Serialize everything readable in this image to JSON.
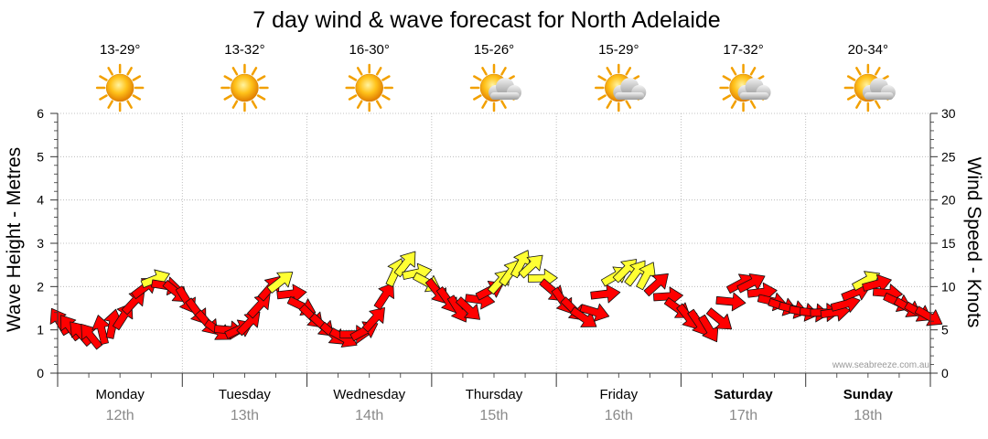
{
  "title": "7 day wind & wave forecast for North Adelaide",
  "watermark": "www.seabreeze.com.au",
  "chart_data": {
    "type": "line",
    "ylabel_left": "Wave Height - Metres",
    "ylabel_right": "Wind Speed - Knots",
    "ylim_left": [
      0,
      6
    ],
    "ylim_right": [
      0,
      30
    ],
    "left_ticks": [
      "0",
      "1",
      "2",
      "3",
      "4",
      "5",
      "6"
    ],
    "right_ticks": [
      "0",
      "5",
      "10",
      "15",
      "20",
      "25",
      "30"
    ],
    "days": [
      {
        "name": "Monday",
        "date": "12th",
        "temp": "13-29°",
        "weather": "sunny",
        "bold": false
      },
      {
        "name": "Tuesday",
        "date": "13th",
        "temp": "13-32°",
        "weather": "sunny",
        "bold": false
      },
      {
        "name": "Wednesday",
        "date": "14th",
        "temp": "16-30°",
        "weather": "sunny",
        "bold": false
      },
      {
        "name": "Thursday",
        "date": "15th",
        "temp": "15-26°",
        "weather": "partly-cloudy",
        "bold": false
      },
      {
        "name": "Friday",
        "date": "16th",
        "temp": "15-29°",
        "weather": "partly-cloudy",
        "bold": false
      },
      {
        "name": "Saturday",
        "date": "17th",
        "temp": "17-32°",
        "weather": "partly-cloudy",
        "bold": true
      },
      {
        "name": "Sunday",
        "date": "18th",
        "temp": "20-34°",
        "weather": "partly-cloudy",
        "bold": true
      }
    ],
    "series": [
      {
        "name": "Wind speed (knots)",
        "day_units_x": [
          0.0,
          0.25,
          0.5,
          0.75,
          1.0,
          1.25,
          1.5,
          1.75,
          2.0,
          2.25,
          2.5,
          2.75,
          3.0,
          3.25,
          3.5,
          3.75,
          4.0,
          4.25,
          4.5,
          4.75,
          5.0,
          5.25,
          5.5,
          5.75,
          6.0,
          6.25,
          6.5,
          6.75,
          7.0
        ],
        "values": [
          6,
          4,
          6,
          11,
          9,
          5,
          5,
          11,
          7,
          4,
          5,
          13,
          10,
          7,
          10,
          13,
          9,
          6,
          12,
          11,
          7,
          5,
          11,
          8,
          7,
          7,
          11,
          8,
          6.5
        ],
        "direction_deg": [
          330,
          315,
          30,
          60,
          150,
          135,
          45,
          40,
          135,
          130,
          45,
          20,
          140,
          150,
          45,
          25,
          150,
          120,
          50,
          25,
          140,
          150,
          50,
          110,
          100,
          80,
          60,
          120,
          120
        ],
        "color_low": "#ff0000",
        "color_high": "#ffff33",
        "threshold_knots": 10.5
      }
    ]
  }
}
